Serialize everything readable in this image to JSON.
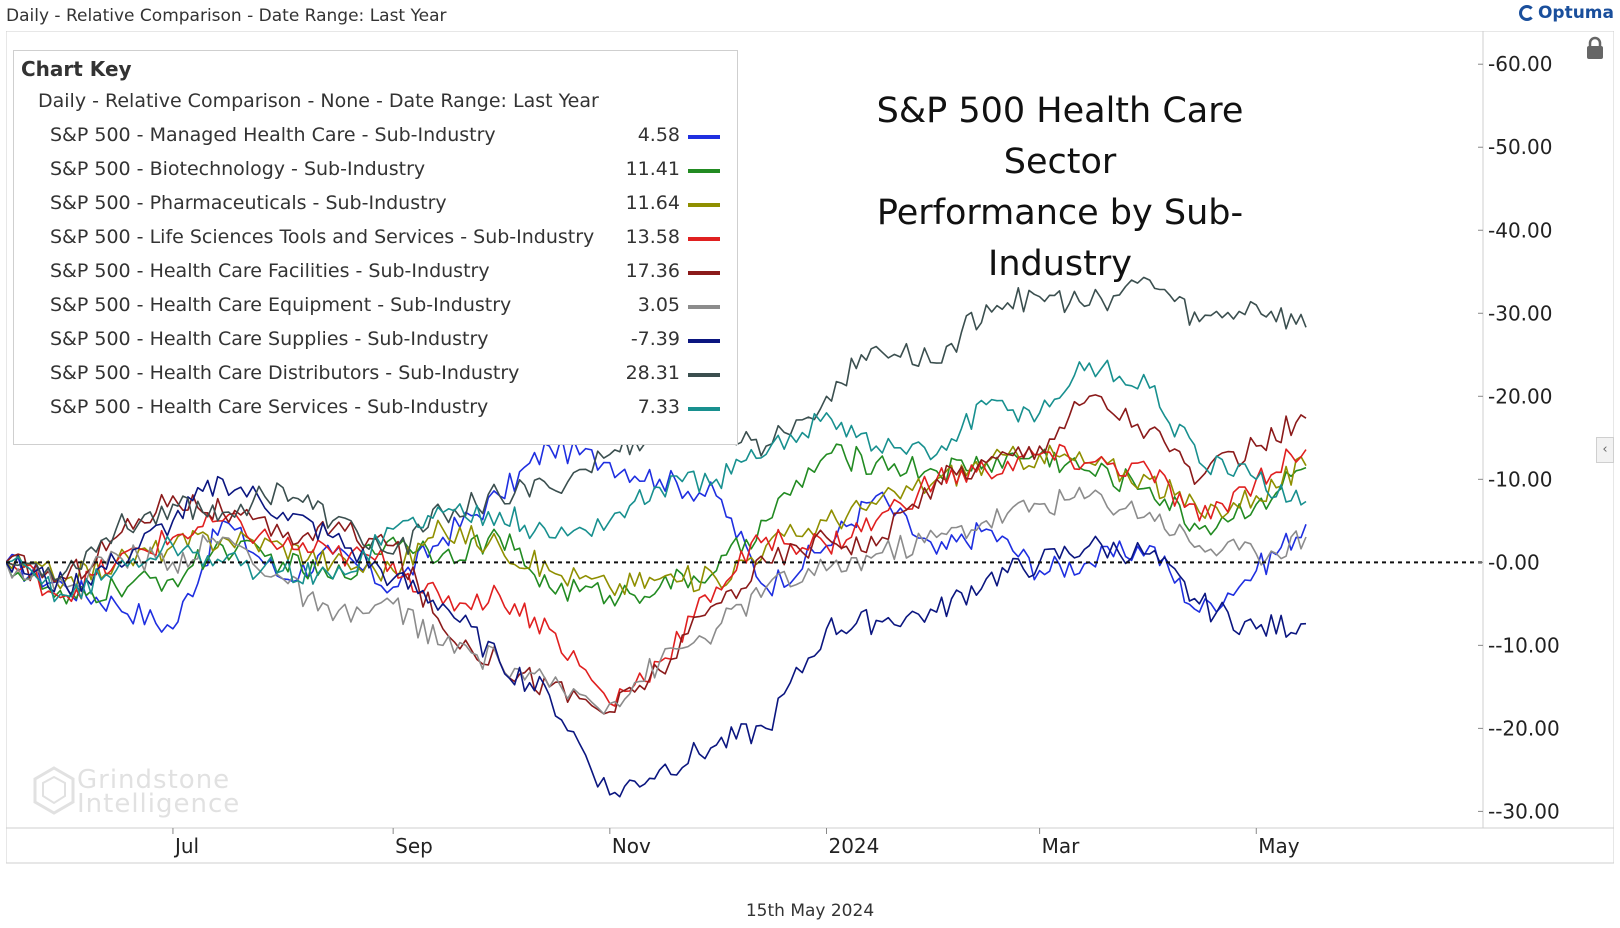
{
  "header": {
    "title": "Daily - Relative Comparison - Date Range: Last Year",
    "brand": "Optuma"
  },
  "footer": {
    "date": "15th May 2024"
  },
  "watermark": {
    "line1": "Grindstone",
    "line2": "Intelligence"
  },
  "icons": {
    "lock": "lock-icon",
    "collapse": "chevron-left-icon",
    "brand": "optuma-logo-icon"
  },
  "collapse_glyph": "‹",
  "chart_key": {
    "title": "Chart Key",
    "subtitle": "Daily - Relative Comparison - None - Date Range: Last Year"
  },
  "chart_data": {
    "type": "line",
    "title": "S&P 500 Health Care Sector Performance by Sub-Industry",
    "title_lines": [
      "S&P 500 Health Care Sector",
      "Performance by Sub-Industry"
    ],
    "x_ticks": [
      "Jul",
      "Sep",
      "Nov",
      "2024",
      "Mar",
      "May"
    ],
    "x_range": [
      "2023-05-15",
      "2024-05-15"
    ],
    "ylim": [
      -32,
      64
    ],
    "y_ticks": [
      "60.00",
      "50.00",
      "40.00",
      "30.00",
      "20.00",
      "10.00",
      "0.00",
      "-10.00",
      "-20.00",
      "-30.00"
    ],
    "y_tick_values": [
      60,
      50,
      40,
      30,
      20,
      10,
      0,
      -10,
      -20,
      -30
    ],
    "reference_line": 0,
    "legend_position": "top-left",
    "series": [
      {
        "name": "S&P 500 - Managed Health Care - Sub-Industry",
        "last": "4.58",
        "color": "#1f2fe0",
        "dates": [
          "2023-05-15",
          "2023-06-01",
          "2023-06-15",
          "2023-07-01",
          "2023-07-15",
          "2023-08-01",
          "2023-08-15",
          "2023-09-01",
          "2023-09-15",
          "2023-10-01",
          "2023-10-15",
          "2023-11-01",
          "2023-11-15",
          "2023-12-01",
          "2023-12-15",
          "2024-01-01",
          "2024-01-15",
          "2024-02-01",
          "2024-02-15",
          "2024-03-01",
          "2024-03-15",
          "2024-04-01",
          "2024-04-15",
          "2024-05-01",
          "2024-05-15"
        ],
        "values": [
          0,
          -3,
          -5,
          -8,
          5,
          -2,
          1,
          -3,
          3,
          8,
          14,
          12,
          10,
          8,
          -3,
          2,
          8,
          1,
          4,
          -1,
          0,
          2,
          -6,
          -1,
          4.58
        ]
      },
      {
        "name": "S&P 500 - Biotechnology - Sub-Industry",
        "last": "11.41",
        "color": "#228b22",
        "dates": [
          "2023-05-15",
          "2023-06-01",
          "2023-06-15",
          "2023-07-01",
          "2023-07-15",
          "2023-08-01",
          "2023-08-15",
          "2023-09-01",
          "2023-09-15",
          "2023-10-01",
          "2023-10-15",
          "2023-11-01",
          "2023-11-15",
          "2023-12-01",
          "2023-12-15",
          "2024-01-01",
          "2024-01-15",
          "2024-02-01",
          "2024-02-15",
          "2024-03-01",
          "2024-03-15",
          "2024-04-01",
          "2024-04-15",
          "2024-05-01",
          "2024-05-15"
        ],
        "values": [
          0,
          -5,
          -3,
          -2,
          2,
          0,
          -2,
          3,
          1,
          3,
          -3,
          -4,
          -3,
          -1,
          5,
          13,
          12,
          11,
          12,
          13,
          11,
          9,
          4,
          7,
          11.41
        ]
      },
      {
        "name": "S&P 500 - Pharmaceuticals - Sub-Industry",
        "last": "11.64",
        "color": "#8f8f00",
        "dates": [
          "2023-05-15",
          "2023-06-01",
          "2023-06-15",
          "2023-07-01",
          "2023-07-15",
          "2023-08-01",
          "2023-08-15",
          "2023-09-01",
          "2023-09-15",
          "2023-10-01",
          "2023-10-15",
          "2023-11-01",
          "2023-11-15",
          "2023-12-01",
          "2023-12-15",
          "2024-01-01",
          "2024-01-15",
          "2024-02-01",
          "2024-02-15",
          "2024-03-01",
          "2024-03-15",
          "2024-04-01",
          "2024-04-15",
          "2024-05-01",
          "2024-05-15"
        ],
        "values": [
          0,
          -2,
          0,
          2,
          3,
          2,
          0,
          -1,
          4,
          2,
          -1,
          -3,
          -2,
          -2,
          2,
          5,
          7,
          10,
          12,
          13,
          12,
          10,
          6,
          8,
          11.64
        ]
      },
      {
        "name": "S&P 500 - Life Sciences Tools and Services - Sub-Industry",
        "last": "13.58",
        "color": "#e02020",
        "dates": [
          "2023-05-15",
          "2023-06-01",
          "2023-06-15",
          "2023-07-01",
          "2023-07-15",
          "2023-08-01",
          "2023-08-15",
          "2023-09-01",
          "2023-09-15",
          "2023-10-01",
          "2023-10-15",
          "2023-11-01",
          "2023-11-15",
          "2023-12-01",
          "2023-12-15",
          "2024-01-01",
          "2024-01-15",
          "2024-02-01",
          "2024-02-15",
          "2024-03-01",
          "2024-03-15",
          "2024-04-01",
          "2024-04-15",
          "2024-05-01",
          "2024-05-15"
        ],
        "values": [
          0,
          -4,
          0,
          3,
          5,
          2,
          1,
          0,
          -5,
          -4,
          -8,
          -17,
          -12,
          -3,
          3,
          2,
          5,
          10,
          11,
          13,
          12,
          11,
          5,
          10,
          13.58
        ]
      },
      {
        "name": "S&P 500 - Health Care Facilities - Sub-Industry",
        "last": "17.36",
        "color": "#8b1a1a",
        "dates": [
          "2023-05-15",
          "2023-06-01",
          "2023-06-15",
          "2023-07-01",
          "2023-07-15",
          "2023-08-01",
          "2023-08-15",
          "2023-09-01",
          "2023-09-15",
          "2023-10-01",
          "2023-10-15",
          "2023-11-01",
          "2023-11-15",
          "2023-12-01",
          "2023-12-15",
          "2024-01-01",
          "2024-01-15",
          "2024-02-01",
          "2024-02-15",
          "2024-03-01",
          "2024-03-15",
          "2024-04-01",
          "2024-04-15",
          "2024-05-01",
          "2024-05-15"
        ],
        "values": [
          0,
          -2,
          3,
          8,
          6,
          3,
          4,
          2,
          -8,
          -12,
          -15,
          -18,
          -13,
          -5,
          0,
          3,
          2,
          10,
          12,
          14,
          20,
          16,
          10,
          14,
          17.36
        ]
      },
      {
        "name": "S&P 500 - Health Care Equipment - Sub-Industry",
        "last": "3.05",
        "color": "#8c8c8c",
        "dates": [
          "2023-05-15",
          "2023-06-01",
          "2023-06-15",
          "2023-07-01",
          "2023-07-15",
          "2023-08-01",
          "2023-08-15",
          "2023-09-01",
          "2023-09-15",
          "2023-10-01",
          "2023-10-15",
          "2023-11-01",
          "2023-11-15",
          "2023-12-01",
          "2023-12-15",
          "2024-01-01",
          "2024-01-15",
          "2024-02-01",
          "2024-02-15",
          "2024-03-01",
          "2024-03-15",
          "2024-04-01",
          "2024-04-15",
          "2024-05-01",
          "2024-05-15"
        ],
        "values": [
          0,
          -3,
          1,
          0,
          3,
          -2,
          -7,
          -5,
          -10,
          -12,
          -15,
          -17,
          -12,
          -8,
          -3,
          -1,
          1,
          3,
          5,
          7,
          8,
          6,
          2,
          1,
          3.05
        ]
      },
      {
        "name": "S&P 500 - Health Care Supplies - Sub-Industry",
        "last": "-7.39",
        "color": "#0b1680",
        "dates": [
          "2023-05-15",
          "2023-06-01",
          "2023-06-15",
          "2023-07-01",
          "2023-07-15",
          "2023-08-01",
          "2023-08-15",
          "2023-09-01",
          "2023-09-15",
          "2023-10-01",
          "2023-10-15",
          "2023-11-01",
          "2023-11-15",
          "2023-12-01",
          "2023-12-15",
          "2024-01-01",
          "2024-01-15",
          "2024-02-01",
          "2024-02-15",
          "2024-03-01",
          "2024-03-15",
          "2024-04-01",
          "2024-04-15",
          "2024-05-01",
          "2024-05-15"
        ],
        "values": [
          0,
          -3,
          0,
          5,
          10,
          6,
          3,
          -2,
          -5,
          -12,
          -16,
          -28,
          -25,
          -22,
          -20,
          -8,
          -7,
          -6,
          -2,
          0,
          2,
          1,
          -5,
          -8,
          -7.39
        ]
      },
      {
        "name": "S&P 500 - Health Care Distributors - Sub-Industry",
        "last": "28.31",
        "color": "#3b4f4f",
        "dates": [
          "2023-05-15",
          "2023-06-01",
          "2023-06-15",
          "2023-07-01",
          "2023-07-15",
          "2023-08-01",
          "2023-08-15",
          "2023-09-01",
          "2023-09-15",
          "2023-10-01",
          "2023-10-15",
          "2023-11-01",
          "2023-11-15",
          "2023-12-01",
          "2023-12-15",
          "2024-01-01",
          "2024-01-15",
          "2024-02-01",
          "2024-02-15",
          "2024-03-01",
          "2024-03-15",
          "2024-04-01",
          "2024-04-15",
          "2024-05-01",
          "2024-05-15"
        ],
        "values": [
          0,
          -1,
          4,
          7,
          6,
          9,
          5,
          1,
          6,
          8,
          9,
          13,
          16,
          16,
          14,
          20,
          26,
          24,
          31,
          32,
          31,
          34,
          29,
          31,
          28.31
        ]
      },
      {
        "name": "S&P 500 - Health Care Services - Sub-Industry",
        "last": "7.33",
        "color": "#18908f",
        "dates": [
          "2023-05-15",
          "2023-06-01",
          "2023-06-15",
          "2023-07-01",
          "2023-07-15",
          "2023-08-01",
          "2023-08-15",
          "2023-09-01",
          "2023-09-15",
          "2023-10-01",
          "2023-10-15",
          "2023-11-01",
          "2023-11-15",
          "2023-12-01",
          "2023-12-15",
          "2024-01-01",
          "2024-01-15",
          "2024-02-01",
          "2024-02-15",
          "2024-03-01",
          "2024-03-15",
          "2024-04-01",
          "2024-04-15",
          "2024-05-01",
          "2024-05-15"
        ],
        "values": [
          0,
          -4,
          -1,
          2,
          0,
          -1,
          -2,
          4,
          6,
          6,
          3,
          5,
          9,
          10,
          13,
          18,
          14,
          13,
          19,
          18,
          24,
          21,
          12,
          10,
          7.33
        ]
      }
    ]
  }
}
